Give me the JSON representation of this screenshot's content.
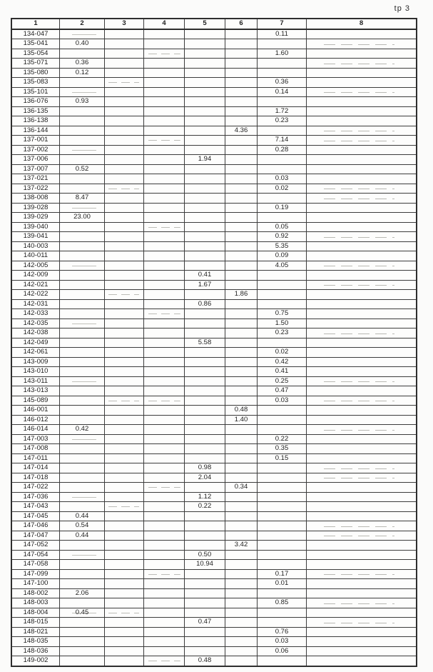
{
  "page": {
    "annotation": "tp 3"
  },
  "table": {
    "columns": [
      "1",
      "2",
      "3",
      "4",
      "5",
      "6",
      "7",
      "8"
    ],
    "rows": [
      [
        "134-047",
        "",
        "",
        "",
        "",
        "",
        "0.11",
        ""
      ],
      [
        "135-041",
        "0.40",
        "",
        "",
        "",
        "",
        "",
        ""
      ],
      [
        "135-054",
        "",
        "",
        "",
        "",
        "",
        "1.60",
        ""
      ],
      [
        "135-071",
        "0.36",
        "",
        "",
        "",
        "",
        "",
        ""
      ],
      [
        "135-080",
        "0.12",
        "",
        "",
        "",
        "",
        "",
        ""
      ],
      [
        "135-083",
        "",
        "",
        "",
        "",
        "",
        "0.36",
        ""
      ],
      [
        "135-101",
        "",
        "",
        "",
        "",
        "",
        "0.14",
        ""
      ],
      [
        "136-076",
        "0.93",
        "",
        "",
        "",
        "",
        "",
        ""
      ],
      [
        "136-135",
        "",
        "",
        "",
        "",
        "",
        "1.72",
        ""
      ],
      [
        "136-138",
        "",
        "",
        "",
        "",
        "",
        "0.23",
        ""
      ],
      [
        "136-144",
        "",
        "",
        "",
        "",
        "4.36",
        "",
        ""
      ],
      [
        "137-001",
        "",
        "",
        "",
        "",
        "",
        "7.14",
        ""
      ],
      [
        "137-002",
        "",
        "",
        "",
        "",
        "",
        "0.28",
        ""
      ],
      [
        "137-006",
        "",
        "",
        "",
        "1.94",
        "",
        "",
        ""
      ],
      [
        "137-007",
        "0.52",
        "",
        "",
        "",
        "",
        "",
        ""
      ],
      [
        "137-021",
        "",
        "",
        "",
        "",
        "",
        "0.03",
        ""
      ],
      [
        "137-022",
        "",
        "",
        "",
        "",
        "",
        "0.02",
        ""
      ],
      [
        "138-008",
        "8.47",
        "",
        "",
        "",
        "",
        "",
        ""
      ],
      [
        "139-028",
        "",
        "",
        "",
        "",
        "",
        "0.19",
        ""
      ],
      [
        "139-029",
        "23.00",
        "",
        "",
        "",
        "",
        "",
        ""
      ],
      [
        "139-040",
        "",
        "",
        "",
        "",
        "",
        "0.05",
        ""
      ],
      [
        "139-041",
        "",
        "",
        "",
        "",
        "",
        "0.92",
        ""
      ],
      [
        "140-003",
        "",
        "",
        "",
        "",
        "",
        "5.35",
        ""
      ],
      [
        "140-011",
        "",
        "",
        "",
        "",
        "",
        "0.09",
        ""
      ],
      [
        "142-005",
        "",
        "",
        "",
        "",
        "",
        "4.05",
        ""
      ],
      [
        "142-009",
        "",
        "",
        "",
        "0.41",
        "",
        "",
        ""
      ],
      [
        "142-021",
        "",
        "",
        "",
        "1.67",
        "",
        "",
        ""
      ],
      [
        "142-022",
        "",
        "",
        "",
        "",
        "1.86",
        "",
        ""
      ],
      [
        "142-031",
        "",
        "",
        "",
        "0.86",
        "",
        "",
        ""
      ],
      [
        "142-033",
        "",
        "",
        "",
        "",
        "",
        "0.75",
        ""
      ],
      [
        "142-035",
        "",
        "",
        "",
        "",
        "",
        "1.50",
        ""
      ],
      [
        "142-038",
        "",
        "",
        "",
        "",
        "",
        "0.23",
        ""
      ],
      [
        "142-049",
        "",
        "",
        "",
        "5.58",
        "",
        "",
        ""
      ],
      [
        "142-061",
        "",
        "",
        "",
        "",
        "",
        "0.02",
        ""
      ],
      [
        "143-009",
        "",
        "",
        "",
        "",
        "",
        "0.42",
        ""
      ],
      [
        "143-010",
        "",
        "",
        "",
        "",
        "",
        "0.41",
        ""
      ],
      [
        "143-011",
        "",
        "",
        "",
        "",
        "",
        "0.25",
        ""
      ],
      [
        "143-013",
        "",
        "",
        "",
        "",
        "",
        "0.47",
        ""
      ],
      [
        "145-089",
        "",
        "",
        "",
        "",
        "",
        "0.03",
        ""
      ],
      [
        "146-001",
        "",
        "",
        "",
        "",
        "0.48",
        "",
        ""
      ],
      [
        "146-012",
        "",
        "",
        "",
        "",
        "1.40",
        "",
        ""
      ],
      [
        "146-014",
        "0.42",
        "",
        "",
        "",
        "",
        "",
        ""
      ],
      [
        "147-003",
        "",
        "",
        "",
        "",
        "",
        "0.22",
        ""
      ],
      [
        "147-008",
        "",
        "",
        "",
        "",
        "",
        "0.35",
        ""
      ],
      [
        "147-011",
        "",
        "",
        "",
        "",
        "",
        "0.15",
        ""
      ],
      [
        "147-014",
        "",
        "",
        "",
        "0.98",
        "",
        "",
        ""
      ],
      [
        "147-018",
        "",
        "",
        "",
        "2.04",
        "",
        "",
        ""
      ],
      [
        "147-022",
        "",
        "",
        "",
        "",
        "0.34",
        "",
        ""
      ],
      [
        "147-036",
        "",
        "",
        "",
        "1.12",
        "",
        "",
        ""
      ],
      [
        "147-043",
        "",
        "",
        "",
        "0.22",
        "",
        "",
        ""
      ],
      [
        "147-045",
        "0.44",
        "",
        "",
        "",
        "",
        "",
        ""
      ],
      [
        "147-046",
        "0.54",
        "",
        "",
        "",
        "",
        "",
        ""
      ],
      [
        "147-047",
        "0.44",
        "",
        "",
        "",
        "",
        "",
        ""
      ],
      [
        "147-052",
        "",
        "",
        "",
        "",
        "3.42",
        "",
        ""
      ],
      [
        "147-054",
        "",
        "",
        "",
        "0.50",
        "",
        "",
        ""
      ],
      [
        "147-058",
        "",
        "",
        "",
        "10.94",
        "",
        "",
        ""
      ],
      [
        "147-099",
        "",
        "",
        "",
        "",
        "",
        "0.17",
        ""
      ],
      [
        "147-100",
        "",
        "",
        "",
        "",
        "",
        "0.01",
        ""
      ],
      [
        "148-002",
        "2.06",
        "",
        "",
        "",
        "",
        "",
        ""
      ],
      [
        "148-003",
        "",
        "",
        "",
        "",
        "",
        "0.85",
        ""
      ],
      [
        "148-004",
        "0.45",
        "",
        "",
        "",
        "",
        "",
        ""
      ],
      [
        "148-015",
        "",
        "",
        "",
        "0.47",
        "",
        "",
        ""
      ],
      [
        "148-021",
        "",
        "",
        "",
        "",
        "",
        "0.76",
        ""
      ],
      [
        "148-035",
        "",
        "",
        "",
        "",
        "",
        "0.03",
        ""
      ],
      [
        "148-036",
        "",
        "",
        "",
        "",
        "",
        "0.06",
        ""
      ],
      [
        "149-002",
        "",
        "",
        "",
        "0.48",
        "",
        "",
        ""
      ]
    ]
  }
}
